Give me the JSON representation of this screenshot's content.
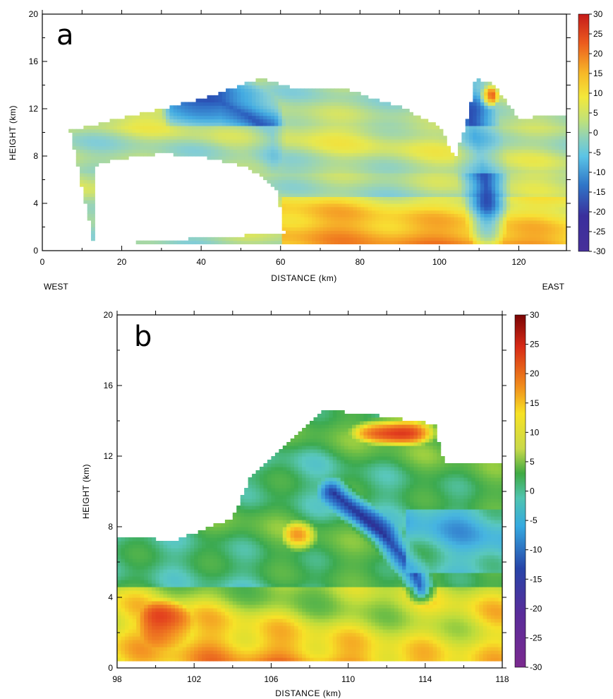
{
  "chart_data": [
    {
      "type": "heatmap",
      "panel": "a",
      "xlabel": "DISTANCE (km)",
      "ylabel": "HEIGHT (km)",
      "xlim": [
        0,
        132
      ],
      "ylim": [
        0,
        20
      ],
      "xticks": [
        0,
        20,
        40,
        60,
        80,
        100,
        120
      ],
      "yticks": [
        0,
        4,
        8,
        12,
        16,
        20
      ],
      "colorbar": {
        "range": [
          -30,
          30
        ],
        "ticks": [
          30,
          25,
          20,
          15,
          10,
          5,
          0,
          -5,
          -10,
          -15,
          -20,
          -25,
          -30
        ]
      },
      "direction_labels": {
        "left": "WEST",
        "right": "EAST"
      },
      "field": {
        "valid_region": {
          "outline": [
            [
              7,
              10.2
            ],
            [
              20,
              11.2
            ],
            [
              40,
              12.8
            ],
            [
              55,
              14.6
            ],
            [
              65,
              13.6
            ],
            [
              75,
              13.8
            ],
            [
              90,
              12.2
            ],
            [
              100,
              10.5
            ],
            [
              104,
              7.8
            ],
            [
              107,
              11
            ],
            [
              109,
              14.5
            ],
            [
              113,
              14.3
            ],
            [
              120,
              11.2
            ],
            [
              132,
              11.5
            ],
            [
              132,
              0.5
            ],
            [
              13,
              0.5
            ]
          ],
          "hole": [
            [
              13,
              7.2
            ],
            [
              20,
              7.8
            ],
            [
              30,
              8.2
            ],
            [
              40,
              8.0
            ],
            [
              52,
              7.0
            ],
            [
              59,
              5.2
            ],
            [
              61,
              1.5
            ],
            [
              13,
              0.5
            ]
          ]
        },
        "features": [
          {
            "kind": "negative_band",
            "path": [
              [
                33,
                13.2
              ],
              [
                45,
                12.6
              ],
              [
                52,
                11.4
              ],
              [
                58,
                9.8
              ]
            ],
            "value": -18,
            "width_km": 3,
            "depth_km": 1.3
          },
          {
            "kind": "positive_layer",
            "x": [
              60,
              132
            ],
            "y": [
              0.5,
              4.5
            ],
            "value": 16
          },
          {
            "kind": "updraft_core",
            "x": [
              110,
              115
            ],
            "y": [
              12,
              14
            ],
            "value": 26
          },
          {
            "kind": "negative_column",
            "path": [
              [
                108,
                11
              ],
              [
                111,
                7
              ],
              [
                112,
                5
              ]
            ],
            "value": -16
          },
          {
            "kind": "anvil_layer",
            "x": [
              7,
              132
            ],
            "y": [
              6.5,
              10.5
            ],
            "value": 3
          }
        ]
      }
    },
    {
      "type": "heatmap",
      "panel": "b",
      "xlabel": "DISTANCE (km)",
      "ylabel": "HEIGHT (km)",
      "xlim": [
        98,
        118
      ],
      "ylim": [
        0,
        20
      ],
      "xticks": [
        98,
        102,
        106,
        110,
        114,
        118
      ],
      "yticks": [
        0,
        4,
        8,
        12,
        16,
        20
      ],
      "colorbar": {
        "range": [
          -30,
          30
        ],
        "ticks": [
          30,
          25,
          20,
          15,
          10,
          5,
          0,
          -5,
          -10,
          -15,
          -20,
          -25,
          -30
        ]
      },
      "field": {
        "valid_region": {
          "outline": [
            [
              98,
              0.5
            ],
            [
              98,
              7.5
            ],
            [
              101,
              7.2
            ],
            [
              104,
              8.5
            ],
            [
              105,
              11
            ],
            [
              107,
              12.8
            ],
            [
              108.7,
              14.6
            ],
            [
              111,
              14.4
            ],
            [
              114.5,
              13.8
            ],
            [
              115,
              11.5
            ],
            [
              118,
              11.7
            ],
            [
              118,
              0.5
            ]
          ]
        },
        "features": [
          {
            "kind": "positive_layer",
            "x": [
              98,
              118
            ],
            "y": [
              0.5,
              4.5
            ],
            "value": 18
          },
          {
            "kind": "strong_updraft",
            "x": [
              99,
              102
            ],
            "y": [
              1,
              4
            ],
            "value": 24
          },
          {
            "kind": "negative_column",
            "path": [
              [
                109.2,
                10
              ],
              [
                110.5,
                8.8
              ],
              [
                111.8,
                7.6
              ],
              [
                112.6,
                6.6
              ],
              [
                113.4,
                5.6
              ],
              [
                113.8,
                4.4
              ]
            ],
            "value": -14
          },
          {
            "kind": "top_updraft_core",
            "x": [
              110,
              115
            ],
            "y": [
              12.5,
              14.3
            ],
            "value": 26
          },
          {
            "kind": "positive_blob",
            "x": [
              106.5,
              108.5
            ],
            "y": [
              6.5,
              8.5
            ],
            "value": 16
          },
          {
            "kind": "negative_layer",
            "x": [
              113,
              118
            ],
            "y": [
              5.5,
              9
            ],
            "value": -3
          }
        ]
      }
    }
  ],
  "panel_letters": {
    "a": "a",
    "b": "b"
  }
}
